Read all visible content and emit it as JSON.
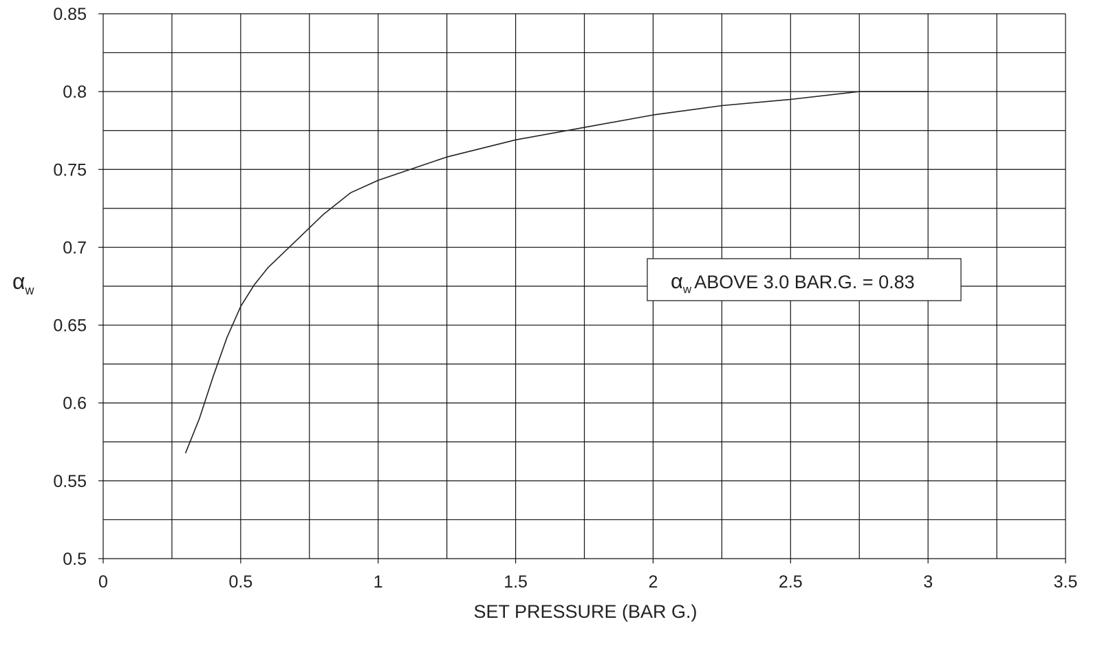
{
  "chart_data": {
    "type": "line",
    "title": "",
    "xlabel": "SET PRESSURE (BAR G.)",
    "ylabel": {
      "symbol": "α",
      "subscript": "w"
    },
    "xlim": [
      0,
      3.5
    ],
    "ylim": [
      0.5,
      0.85
    ],
    "x_ticks": [
      "0",
      "0.5",
      "1",
      "1.5",
      "2",
      "2.5",
      "3",
      "3.5"
    ],
    "y_ticks": [
      "0.5",
      "0.55",
      "0.6",
      "0.65",
      "0.7",
      "0.75",
      "0.8",
      "0.85"
    ],
    "x_grid_step": 0.25,
    "y_grid_step": 0.025,
    "grid": true,
    "series": [
      {
        "x": [
          0.3,
          0.35,
          0.4,
          0.45,
          0.5,
          0.55,
          0.6,
          0.7,
          0.8,
          0.9,
          1.0,
          1.1,
          1.25,
          1.5,
          1.75,
          2.0,
          2.25,
          2.5,
          2.75,
          2.8,
          3.0
        ],
        "y": [
          0.568,
          0.59,
          0.617,
          0.642,
          0.662,
          0.676,
          0.687,
          0.704,
          0.721,
          0.735,
          0.743,
          0.749,
          0.758,
          0.769,
          0.777,
          0.785,
          0.791,
          0.795,
          0.8,
          0.8,
          0.8
        ]
      }
    ],
    "annotation": {
      "symbol": "α",
      "subscript": "w",
      "text": "ABOVE 3.0 BAR.G.  = 0.83"
    }
  }
}
